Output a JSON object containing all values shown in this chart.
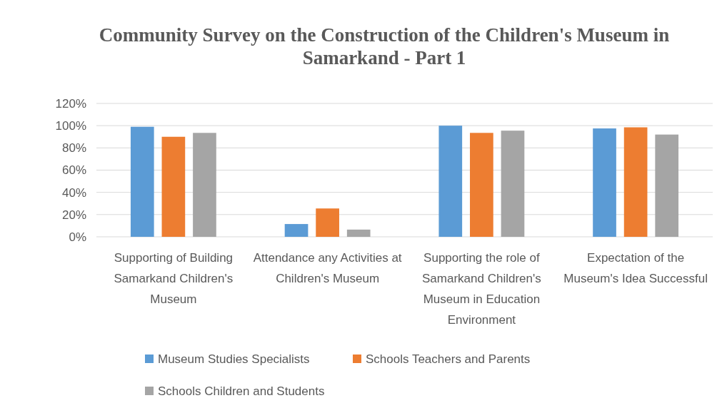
{
  "chart_data": {
    "type": "bar",
    "title": "Community Survey on the Construction of the Children's Museum in Samarkand - Part 1",
    "categories": [
      "Supporting of Building Samarkand Children's Museum",
      "Attendance any Activities at Children's Museum",
      "Supporting the role of Samarkand Children's Museum in Education Environment",
      "Expectation of the Museum's Idea Successful"
    ],
    "series": [
      {
        "name": "Museum Studies Specialists",
        "color": "#5b9bd5",
        "values": [
          99,
          11.5,
          100,
          97.5
        ]
      },
      {
        "name": "Schools Teachers and Parents",
        "color": "#ed7d31",
        "values": [
          90,
          25.5,
          93.5,
          98.5
        ]
      },
      {
        "name": "Schools Children and Students",
        "color": "#a5a5a5",
        "values": [
          93.5,
          6.5,
          95.5,
          92
        ]
      }
    ],
    "ylim": [
      0,
      120
    ],
    "yticks": [
      {
        "value": 0,
        "label": "0%"
      },
      {
        "value": 20,
        "label": "20%"
      },
      {
        "value": 40,
        "label": "40%"
      },
      {
        "value": 60,
        "label": "60%"
      },
      {
        "value": 80,
        "label": "80%"
      },
      {
        "value": 100,
        "label": "100%"
      },
      {
        "value": 120,
        "label": "120%"
      }
    ],
    "grid": "y",
    "legend": "bottom"
  }
}
